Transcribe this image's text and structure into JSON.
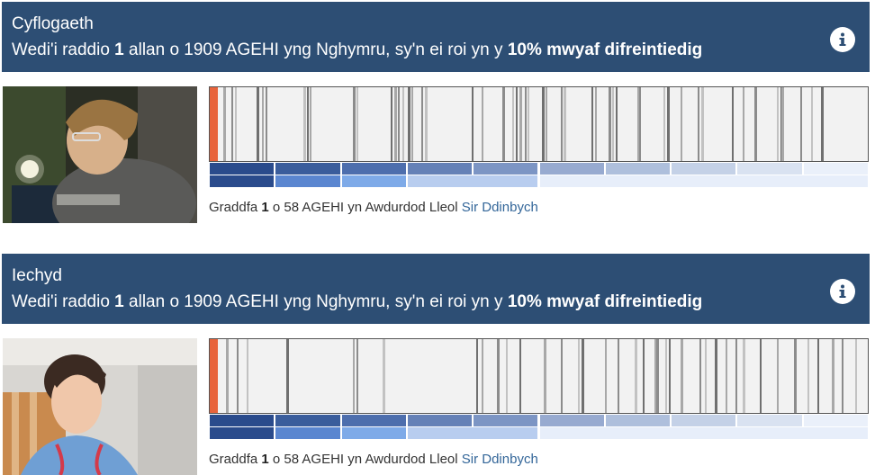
{
  "sections": [
    {
      "title": "Cyflogaeth",
      "subtitle": {
        "prefix": "Wedi'i raddio ",
        "rank": "1",
        "middle": " allan o 1909 AGEHI yng Nghymru, sy'n ei roi yn y ",
        "emphasis": "10% mwyaf difreintiedig"
      },
      "photo_icon": "worker-photo",
      "rank_text": {
        "prefix": "Graddfa ",
        "rank": "1",
        "middle": " o 58 AGEHI yn Awdurdod Lleol ",
        "link": "Sir Ddinbych"
      },
      "barcode": {
        "total": 1909,
        "highlight_rank": 1,
        "highlight_color": "#e8643c",
        "line_ranks": [
          18,
          40,
          50,
          115,
          130,
          140,
          250,
          260,
          270,
          395,
          405,
          505,
          515,
          525,
          540,
          555,
          565,
          595,
          605,
          740,
          770,
          830,
          860,
          870,
          880,
          895,
          905,
          945,
          955,
          1000,
          1010,
          1090,
          1100,
          1140,
          1150,
          1160,
          1225,
          1230,
          1300,
          1310,
          1350,
          1400,
          1410,
          1500,
          1530,
          1565,
          1630,
          1640,
          1645,
          1700,
          1730,
          1760
        ]
      }
    },
    {
      "title": "Iechyd",
      "subtitle": {
        "prefix": "Wedi'i raddio ",
        "rank": "1",
        "middle": " allan o 1909 AGEHI yng Nghymru, sy'n ei roi yn y ",
        "emphasis": "10% mwyaf difreintiedig"
      },
      "photo_icon": "nurse-photo",
      "rank_text": {
        "prefix": "Graddfa ",
        "rank": "1",
        "middle": " o 58 AGEHI yn Awdurdod Lleol ",
        "link": "Sir Ddinbych"
      },
      "barcode": {
        "total": 1909,
        "highlight_rank": 1,
        "highlight_color": "#e8643c",
        "line_ranks": [
          25,
          55,
          85,
          200,
          395,
          405,
          480,
          755,
          770,
          815,
          840,
          880,
          950,
          1000,
          1050,
          1060,
          1130,
          1165,
          1215,
          1240,
          1275,
          1280,
          1305,
          1315,
          1350,
          1405,
          1420,
          1450,
          1480,
          1510,
          1530,
          1580,
          1630,
          1680,
          1720,
          1750,
          1790,
          1820,
          1860
        ]
      }
    }
  ],
  "deciles": [
    {
      "color": "#2a4b8c"
    },
    {
      "color": "#3a5d9c"
    },
    {
      "color": "#4d6ead"
    },
    {
      "color": "#6581b7"
    },
    {
      "color": "#7c95c4"
    },
    {
      "color": "#97aad0"
    },
    {
      "color": "#aebfdc"
    },
    {
      "color": "#c4d1e7"
    },
    {
      "color": "#d9e2f1"
    },
    {
      "color": "#eaf0fa"
    }
  ],
  "quintile_row": [
    {
      "color": "#2a4b8c",
      "span": 1
    },
    {
      "color": "#5a86d0",
      "span": 1
    },
    {
      "color": "#7eaae8",
      "span": 1
    },
    {
      "color": "#b8cdef",
      "span": 2
    },
    {
      "color": "#e7eefa",
      "span": 5
    }
  ]
}
